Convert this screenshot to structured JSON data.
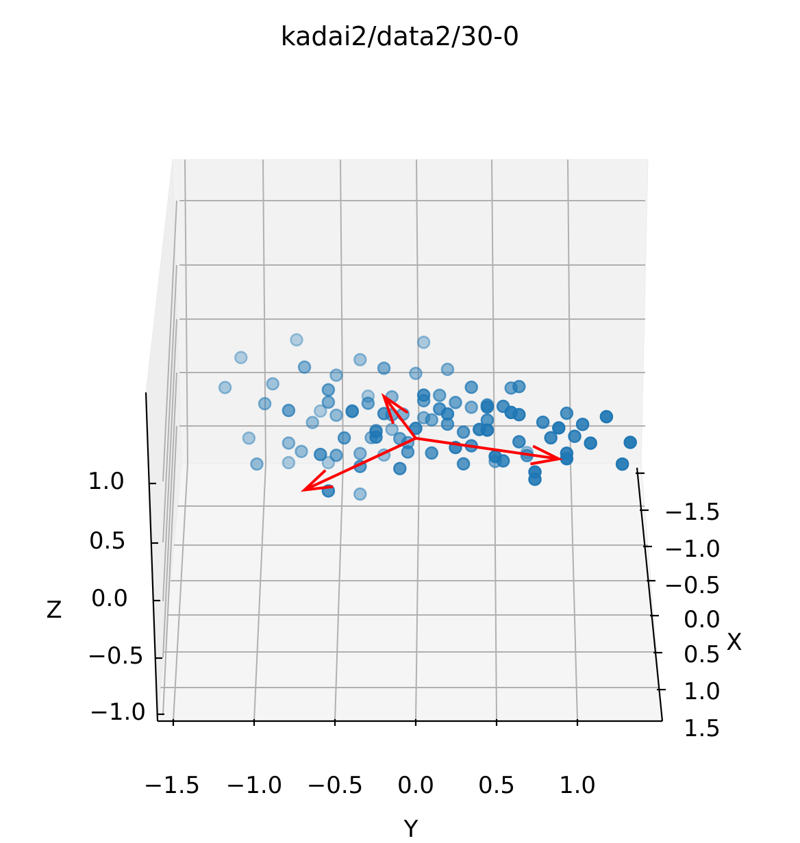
{
  "chart_data": {
    "type": "scatter",
    "projection": "3d",
    "title": "kadai2/data2/30-0",
    "xlabel": "X",
    "ylabel": "Y",
    "zlabel": "Z",
    "x_ticks": [
      "−1.5",
      "−1.0",
      "−0.5",
      "0.0",
      "0.5",
      "1.0",
      "1.5"
    ],
    "y_ticks": [
      "−1.5",
      "−1.0",
      "−0.5",
      "0.0",
      "0.5",
      "1.0"
    ],
    "z_ticks": [
      "−1.0",
      "−0.5",
      "0.0",
      "0.5",
      "1.0"
    ],
    "xlim": [
      -1.5,
      1.5
    ],
    "ylim": [
      -1.6,
      1.4
    ],
    "zlim": [
      -1.2,
      1.2
    ],
    "view": {
      "elev": 30,
      "azim": 0
    },
    "grid": true,
    "series": [
      {
        "name": "data",
        "color": "#1f77b4",
        "note": "points as [x, y, z] in data units (x = depth, y = horizontal, z = vertical)",
        "points": [
          [
            -1.3,
            -0.55,
            -0.95
          ],
          [
            -1.3,
            -0.8,
            -0.95
          ],
          [
            -1.0,
            -0.35,
            -1.3
          ],
          [
            -1.2,
            0.7,
            -0.75
          ],
          [
            -1.0,
            -0.65,
            -0.2
          ],
          [
            -0.9,
            -0.72,
            -0.6
          ],
          [
            -0.8,
            -1.0,
            -0.75
          ],
          [
            -0.85,
            -0.8,
            -0.45
          ],
          [
            -0.7,
            -0.28,
            -0.3
          ],
          [
            -0.6,
            -0.35,
            -0.5
          ],
          [
            -0.5,
            -0.08,
            0.15
          ],
          [
            -0.4,
            0.35,
            0.3
          ],
          [
            -0.45,
            -0.25,
            -0.08
          ],
          [
            -0.3,
            0.1,
            0.15
          ],
          [
            -0.2,
            -0.5,
            -0.35
          ],
          [
            -0.25,
            -0.15,
            0.25
          ],
          [
            -0.1,
            -0.1,
            -0.05
          ],
          [
            0.0,
            0.25,
            0.55
          ],
          [
            0.1,
            -0.45,
            0.05
          ],
          [
            0.2,
            0.45,
            0.6
          ],
          [
            0.3,
            -0.35,
            -0.3
          ],
          [
            0.25,
            -0.05,
            -0.1
          ],
          [
            0.4,
            0.1,
            -0.05
          ],
          [
            0.5,
            0.45,
            0.5
          ],
          [
            0.55,
            0.3,
            -0.15
          ],
          [
            0.6,
            -0.1,
            -0.2
          ],
          [
            0.7,
            -0.55,
            -0.5
          ],
          [
            0.75,
            -0.25,
            0.35
          ],
          [
            0.8,
            0.65,
            0.3
          ],
          [
            0.9,
            0.0,
            0.55
          ],
          [
            1.0,
            0.85,
            0.45
          ],
          [
            1.0,
            0.25,
            0.3
          ],
          [
            1.1,
            1.05,
            0.7
          ],
          [
            1.2,
            0.5,
            0.25
          ],
          [
            1.3,
            1.1,
            0.5
          ],
          [
            1.4,
            0.75,
            0.1
          ],
          [
            1.5,
            1.35,
            0.6
          ],
          [
            1.45,
            0.9,
            0.8
          ],
          [
            1.3,
            0.45,
            0.7
          ],
          [
            1.2,
            0.95,
            0.3
          ],
          [
            1.1,
            0.65,
            0.85
          ],
          [
            0.95,
            0.45,
            0.9
          ],
          [
            0.85,
            0.2,
            0.75
          ],
          [
            0.7,
            0.55,
            0.8
          ],
          [
            0.6,
            0.95,
            0.65
          ],
          [
            0.45,
            0.15,
            0.65
          ],
          [
            0.35,
            0.65,
            0.95
          ],
          [
            0.15,
            0.35,
            0.85
          ],
          [
            0.05,
            0.05,
            0.6
          ],
          [
            -0.05,
            0.6,
            0.75
          ],
          [
            -0.2,
            -0.3,
            0.45
          ],
          [
            -0.35,
            -0.55,
            0.4
          ],
          [
            -0.5,
            -0.4,
            0.2
          ],
          [
            -0.65,
            -0.15,
            0.35
          ],
          [
            -0.75,
            -0.95,
            0.2
          ],
          [
            -0.95,
            -0.5,
            0.55
          ],
          [
            -1.1,
            -0.9,
            0.35
          ],
          [
            -1.2,
            -1.2,
            0.25
          ],
          [
            -1.35,
            -0.3,
            0.05
          ],
          [
            -1.45,
            -1.1,
            0.6
          ],
          [
            -1.5,
            -0.75,
            0.85
          ],
          [
            -1.3,
            0.05,
            0.9
          ],
          [
            -1.15,
            -0.35,
            0.7
          ],
          [
            -0.9,
            0.0,
            0.6
          ],
          [
            -0.7,
            0.2,
            0.75
          ],
          [
            -0.55,
            -0.7,
            0.85
          ],
          [
            -0.4,
            -0.2,
            0.9
          ],
          [
            -0.25,
            0.15,
            0.55
          ],
          [
            -0.1,
            -0.55,
            0.7
          ],
          [
            0.05,
            -0.8,
            0.45
          ],
          [
            0.2,
            -0.4,
            0.5
          ],
          [
            0.35,
            0.3,
            0.25
          ],
          [
            0.5,
            -0.2,
            0.6
          ],
          [
            0.65,
            0.05,
            0.95
          ],
          [
            0.8,
            0.8,
            0.6
          ],
          [
            0.95,
            1.0,
            0.45
          ],
          [
            1.05,
            0.4,
            0.6
          ],
          [
            1.25,
            0.6,
            0.95
          ],
          [
            1.4,
            1.2,
            0.95
          ],
          [
            1.5,
            0.95,
            0.35
          ],
          [
            -1.4,
            -0.6,
            -0.2
          ],
          [
            -1.1,
            -0.15,
            -0.35
          ],
          [
            -0.8,
            -0.5,
            0.0
          ],
          [
            -0.6,
            0.05,
            0.05
          ],
          [
            -0.3,
            -0.05,
            -0.2
          ],
          [
            0.0,
            -0.25,
            0.1
          ],
          [
            0.3,
            0.2,
            0.35
          ],
          [
            0.6,
            0.35,
            0.15
          ],
          [
            0.9,
            0.55,
            0.05
          ],
          [
            1.2,
            0.75,
            -0.1
          ],
          [
            -1.25,
            -1.05,
            -0.55
          ],
          [
            -1.0,
            -0.2,
            -0.7
          ],
          [
            -0.55,
            0.5,
            -0.6
          ],
          [
            0.15,
            0.7,
            -0.2
          ],
          [
            0.45,
            -0.6,
            -0.05
          ],
          [
            1.35,
            1.3,
            0.2
          ]
        ]
      }
    ],
    "vectors": {
      "color": "#ff0000",
      "origin": [
        0,
        0,
        0
      ],
      "directions": [
        [
          -0.3,
          0.9,
          -0.45
        ],
        [
          0.1,
          -0.7,
          -0.75
        ],
        [
          -0.55,
          -0.2,
          0.4
        ]
      ]
    }
  }
}
